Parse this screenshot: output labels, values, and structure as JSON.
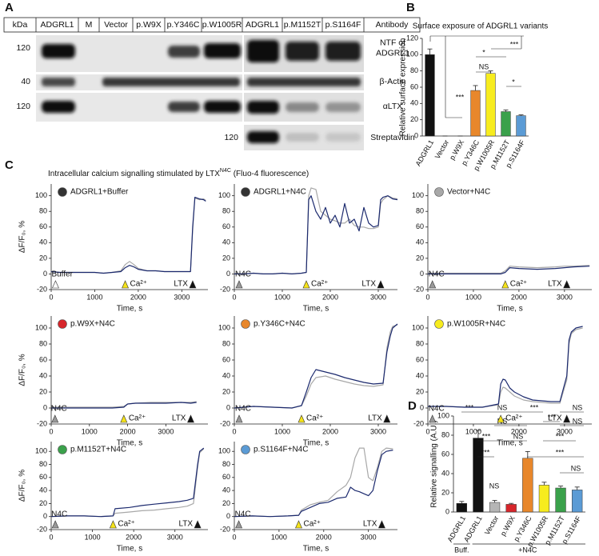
{
  "panel_labels": [
    "A",
    "B",
    "C",
    "D"
  ],
  "panel_c_title": [
    "Intracellular calcium signalling stimulated by LTX",
    "N4C",
    " (Fluo-4 fluorescence)"
  ],
  "blot": {
    "header": [
      "kDa",
      "ADGRL1",
      "M",
      "Vector",
      "p.W9X",
      "p.Y346C",
      "p.W1005R",
      "ADGRL1",
      "p.M1152T",
      "p.S1164F",
      "Antibody"
    ],
    "rows": [
      {
        "kda": "120",
        "antibody": [
          "NTF of",
          "ADGRL1"
        ]
      },
      {
        "kda": "40",
        "antibody": [
          "β-Actin"
        ]
      },
      {
        "kda": "120",
        "antibody": [
          "αLTX"
        ]
      },
      {
        "kda": "120",
        "antibody": [
          "Streptavidin"
        ]
      }
    ]
  },
  "chart_data": [
    {
      "type": "bar",
      "title": "Surface exposure of ADGRL1 variants",
      "ylabel": "Relative surface expression",
      "categories": [
        "ADGRL1",
        "Vector",
        "p.W9X",
        "p.Y346C",
        "p.W1005R",
        "p.M1152T",
        "p.S1164F"
      ],
      "values": [
        100,
        0,
        0,
        56,
        77,
        30,
        25
      ],
      "errors": [
        7,
        0,
        0,
        6,
        3,
        2,
        1
      ],
      "colors": [
        "#111111",
        "#111111",
        "#111111",
        "#e8872b",
        "#f7ec1e",
        "#3aa14b",
        "#5b9bd5"
      ],
      "ylim": [
        0,
        120
      ],
      "yticks": [
        0,
        20,
        40,
        60,
        80,
        100,
        120
      ],
      "annotations": [
        "***",
        "***",
        "*",
        "NS",
        "*"
      ]
    },
    {
      "type": "bar",
      "ylabel": "Relative signalling (A.U.)",
      "categories": [
        "ADGRL1",
        "ADGRL1",
        "Vector",
        "p.W9X",
        "p.Y346C",
        "p.W1005R",
        "p.M1152T",
        "p.S1164F"
      ],
      "values": [
        9,
        77,
        10,
        8,
        56,
        28,
        25,
        23
      ],
      "errors": [
        2,
        8,
        2,
        1,
        7,
        3,
        2,
        3
      ],
      "colors": [
        "#111111",
        "#111111",
        "#b5b5b5",
        "#d7262b",
        "#e8872b",
        "#f7ec1e",
        "#3aa14b",
        "#5b9bd5"
      ],
      "ylim": [
        0,
        100
      ],
      "yticks": [
        0,
        20,
        40,
        60,
        80,
        100
      ],
      "group_labels": [
        "Buff.",
        "+N4C"
      ],
      "annotations": [
        "***",
        "NS",
        "***",
        "***",
        "NS",
        "NS",
        "NS",
        "***",
        "NS",
        "***",
        "***",
        "***",
        "NS",
        "NS"
      ]
    },
    {
      "type": "line",
      "title": "ADGRL1+Buffer",
      "marker_color": "#333333",
      "ylabel": "ΔF/F₀, %",
      "xlabel": "Time, s",
      "x": [
        0,
        200,
        400,
        600,
        800,
        1000,
        1200,
        1400,
        1600,
        1700,
        1800,
        1900,
        2000,
        2200,
        2400,
        2600,
        2800,
        3000,
        3200,
        3250,
        3300,
        3400,
        3500,
        3550
      ],
      "series": [
        {
          "color": "#a8a8a8",
          "values": [
            3,
            2,
            2,
            2,
            2,
            2,
            1,
            2,
            4,
            12,
            16,
            12,
            7,
            4,
            4,
            3,
            3,
            3,
            3,
            55,
            97,
            95,
            96,
            94
          ]
        },
        {
          "color": "#1c2a6e",
          "values": [
            3,
            2,
            2,
            2,
            2,
            2,
            1,
            2,
            3,
            8,
            11,
            9,
            6,
            4,
            4,
            3,
            3,
            3,
            3,
            60,
            98,
            96,
            95,
            93
          ]
        }
      ],
      "xlim": [
        0,
        3600
      ],
      "ylim": [
        -20,
        115
      ],
      "xticks": [
        0,
        1000,
        2000,
        3000
      ],
      "yticks": [
        -20,
        0,
        20,
        40,
        60,
        80,
        100
      ],
      "events": [
        {
          "label": "Buffer",
          "time": 100,
          "color": "#ffffff"
        },
        {
          "label": "Ca²⁺",
          "time": 1700,
          "color": "#f5e31a"
        },
        {
          "label": "LTX",
          "time": 3250,
          "color": "#111111"
        }
      ]
    },
    {
      "type": "line",
      "title": "ADGRL1+N4C",
      "marker_color": "#333333",
      "xlabel": "Time, s",
      "x": [
        0,
        200,
        400,
        600,
        800,
        1000,
        1200,
        1400,
        1500,
        1550,
        1600,
        1700,
        1800,
        1900,
        2000,
        2100,
        2200,
        2300,
        2400,
        2500,
        2600,
        2700,
        2800,
        2900,
        3000,
        3050,
        3100,
        3200,
        3300,
        3400
      ],
      "series": [
        {
          "color": "#a8a8a8",
          "values": [
            0,
            0,
            1,
            0,
            0,
            1,
            0,
            1,
            2,
            100,
            110,
            108,
            80,
            75,
            70,
            68,
            65,
            65,
            70,
            62,
            60,
            60,
            58,
            58,
            60,
            90,
            95,
            100,
            97,
            96
          ]
        },
        {
          "color": "#1c2a6e",
          "values": [
            0,
            0,
            1,
            0,
            0,
            1,
            0,
            1,
            2,
            95,
            100,
            80,
            70,
            85,
            65,
            75,
            60,
            90,
            65,
            70,
            55,
            85,
            65,
            60,
            62,
            95,
            98,
            100,
            96,
            95
          ]
        }
      ],
      "xlim": [
        0,
        3400
      ],
      "ylim": [
        -20,
        115
      ],
      "xticks": [
        0,
        1000,
        2000,
        3000
      ],
      "yticks": [
        -20,
        0,
        20,
        40,
        60,
        80,
        100
      ],
      "events": [
        {
          "label": "N4C",
          "time": 100,
          "color": "#999999"
        },
        {
          "label": "Ca²⁺",
          "time": 1500,
          "color": "#f5e31a"
        },
        {
          "label": "LTX",
          "time": 3050,
          "color": "#111111"
        }
      ]
    },
    {
      "type": "line",
      "title": "Vector+N4C",
      "marker_color": "#a8a8a8",
      "xlabel": "Time, s",
      "x": [
        0,
        400,
        800,
        1200,
        1600,
        1700,
        1800,
        2000,
        2400,
        2800,
        3000,
        3200,
        3550
      ],
      "series": [
        {
          "color": "#a8a8a8",
          "values": [
            1,
            1,
            1,
            1,
            1,
            4,
            10,
            9,
            8,
            9,
            10,
            10,
            11
          ]
        },
        {
          "color": "#1c2a6e",
          "values": [
            0,
            0,
            0,
            0,
            0,
            2,
            8,
            7,
            6,
            7,
            8,
            9,
            10
          ]
        }
      ],
      "xlim": [
        0,
        3600
      ],
      "ylim": [
        -20,
        115
      ],
      "xticks": [
        0,
        1000,
        2000,
        3000
      ],
      "yticks": [
        -20,
        0,
        20,
        40,
        60,
        80,
        100
      ],
      "events": [
        {
          "label": "N4C",
          "time": 100,
          "color": "#999999"
        },
        {
          "label": "Ca²⁺",
          "time": 1700,
          "color": "#f5e31a"
        },
        {
          "label": "LTX",
          "time": 3050,
          "color": "#111111"
        }
      ]
    },
    {
      "type": "line",
      "title": "p.W9X+N4C",
      "marker_color": "#d7262b",
      "ylabel": "ΔF/F₀, %",
      "xlabel": "Time, s",
      "x": [
        0,
        400,
        800,
        1200,
        1600,
        1900,
        2000,
        2200,
        2600,
        3000,
        3400,
        3650,
        3800
      ],
      "series": [
        {
          "color": "#a8a8a8",
          "values": [
            1,
            1,
            1,
            1,
            1,
            2,
            5,
            6,
            7,
            7,
            7,
            7,
            8
          ]
        },
        {
          "color": "#1c2a6e",
          "values": [
            0,
            0,
            0,
            0,
            0,
            1,
            5,
            6,
            6,
            6,
            7,
            6,
            7
          ]
        }
      ],
      "xlim": [
        0,
        4100
      ],
      "ylim": [
        -20,
        115
      ],
      "xticks": [
        0,
        1000,
        2000,
        3000
      ],
      "yticks": [
        -20,
        0,
        20,
        40,
        60,
        80,
        100
      ],
      "events": [
        {
          "label": "N4C",
          "time": 100,
          "color": "#999999"
        },
        {
          "label": "Ca²⁺",
          "time": 1900,
          "color": "#f5e31a"
        },
        {
          "label": "LTX",
          "time": 3650,
          "color": "#111111"
        }
      ]
    },
    {
      "type": "line",
      "title": "p.Y346C+N4C",
      "marker_color": "#e8872b",
      "xlabel": "Time, s",
      "x": [
        0,
        400,
        800,
        1200,
        1400,
        1500,
        1600,
        1700,
        1900,
        2100,
        2300,
        2500,
        2700,
        2900,
        3100,
        3180,
        3250,
        3300,
        3400
      ],
      "series": [
        {
          "color": "#a8a8a8",
          "values": [
            0,
            2,
            1,
            0,
            3,
            15,
            30,
            38,
            40,
            36,
            33,
            30,
            28,
            27,
            29,
            75,
            95,
            102,
            104
          ]
        },
        {
          "color": "#1c2a6e",
          "values": [
            0,
            2,
            1,
            0,
            3,
            20,
            38,
            48,
            45,
            42,
            38,
            35,
            32,
            30,
            31,
            70,
            90,
            100,
            105
          ]
        }
      ],
      "xlim": [
        0,
        3400
      ],
      "ylim": [
        -20,
        115
      ],
      "xticks": [
        0,
        1000,
        2000,
        3000
      ],
      "yticks": [
        -20,
        0,
        20,
        40,
        60,
        80,
        100
      ],
      "events": [
        {
          "label": "N4C",
          "time": 100,
          "color": "#999999"
        },
        {
          "label": "Ca²⁺",
          "time": 1400,
          "color": "#f5e31a"
        },
        {
          "label": "LTX",
          "time": 3180,
          "color": "#111111"
        }
      ]
    },
    {
      "type": "line",
      "title": "p.W1005R+N4C",
      "marker_color": "#f7ec1e",
      "xlabel": "Time, s",
      "x": [
        0,
        400,
        800,
        1200,
        1550,
        1600,
        1650,
        1700,
        1800,
        1900,
        2100,
        2300,
        2500,
        2700,
        2900,
        3050,
        3100,
        3150,
        3250,
        3400
      ],
      "series": [
        {
          "color": "#a8a8a8",
          "values": [
            2,
            2,
            1,
            1,
            4,
            20,
            26,
            25,
            20,
            15,
            10,
            8,
            7,
            6,
            6,
            35,
            80,
            93,
            98,
            100
          ]
        },
        {
          "color": "#1c2a6e",
          "values": [
            2,
            2,
            1,
            1,
            5,
            30,
            36,
            35,
            25,
            20,
            14,
            10,
            9,
            8,
            8,
            40,
            85,
            95,
            100,
            102
          ]
        }
      ],
      "xlim": [
        0,
        3600
      ],
      "ylim": [
        -20,
        115
      ],
      "xticks": [
        0,
        1000,
        2000,
        3000
      ],
      "yticks": [
        -20,
        0,
        20,
        40,
        60,
        80,
        100
      ],
      "events": [
        {
          "label": "N4C",
          "time": 100,
          "color": "#999999"
        },
        {
          "label": "Ca²⁺",
          "time": 1600,
          "color": "#f5e31a"
        },
        {
          "label": "LTX",
          "time": 3050,
          "color": "#111111"
        }
      ]
    },
    {
      "type": "line",
      "title": "p.M1152T+N4C",
      "marker_color": "#3aa14b",
      "ylabel": "ΔF/F₀, %",
      "xlabel": "Time, s",
      "x": [
        0,
        400,
        800,
        1200,
        1500,
        1550,
        1900,
        2200,
        2500,
        2800,
        3100,
        3300,
        3450,
        3550,
        3600,
        3700
      ],
      "series": [
        {
          "color": "#a8a8a8",
          "values": [
            0,
            1,
            1,
            0,
            1,
            5,
            7,
            9,
            10,
            12,
            14,
            16,
            20,
            75,
            98,
            104
          ]
        },
        {
          "color": "#1c2a6e",
          "values": [
            0,
            1,
            1,
            0,
            1,
            12,
            14,
            17,
            19,
            21,
            23,
            25,
            28,
            80,
            100,
            105
          ]
        }
      ],
      "xlim": [
        0,
        3800
      ],
      "ylim": [
        -20,
        115
      ],
      "xticks": [
        0,
        1000,
        2000,
        3000
      ],
      "yticks": [
        -20,
        0,
        20,
        40,
        60,
        80,
        100
      ],
      "events": [
        {
          "label": "N4C",
          "time": 100,
          "color": "#999999"
        },
        {
          "label": "Ca²⁺",
          "time": 1500,
          "color": "#f5e31a"
        },
        {
          "label": "LTX",
          "time": 3550,
          "color": "#111111"
        }
      ]
    },
    {
      "type": "line",
      "title": "p.S1164F+N4C",
      "marker_color": "#5b9bd5",
      "xlabel": "Time, s",
      "x": [
        0,
        400,
        800,
        1200,
        1440,
        1500,
        1700,
        1900,
        2100,
        2300,
        2500,
        2600,
        2700,
        2800,
        2900,
        3000,
        3100,
        3200,
        3300,
        3400,
        3550
      ],
      "series": [
        {
          "color": "#a8a8a8",
          "values": [
            0,
            1,
            0,
            1,
            2,
            10,
            18,
            22,
            25,
            38,
            48,
            60,
            90,
            105,
            105,
            60,
            55,
            75,
            100,
            105,
            104
          ]
        },
        {
          "color": "#1c2a6e",
          "values": [
            0,
            1,
            0,
            1,
            2,
            8,
            14,
            20,
            22,
            28,
            30,
            45,
            40,
            38,
            35,
            32,
            40,
            70,
            95,
            100,
            102
          ]
        }
      ],
      "xlim": [
        0,
        3650
      ],
      "ylim": [
        -20,
        115
      ],
      "xticks": [
        0,
        1000,
        2000,
        3000
      ],
      "yticks": [
        -20,
        0,
        20,
        40,
        60,
        80,
        100
      ],
      "events": [
        {
          "label": "N4C",
          "time": 100,
          "color": "#999999"
        },
        {
          "label": "Ca²⁺",
          "time": 1440,
          "color": "#f5e31a"
        },
        {
          "label": "LTX",
          "time": 3300,
          "color": "#111111"
        }
      ]
    }
  ]
}
